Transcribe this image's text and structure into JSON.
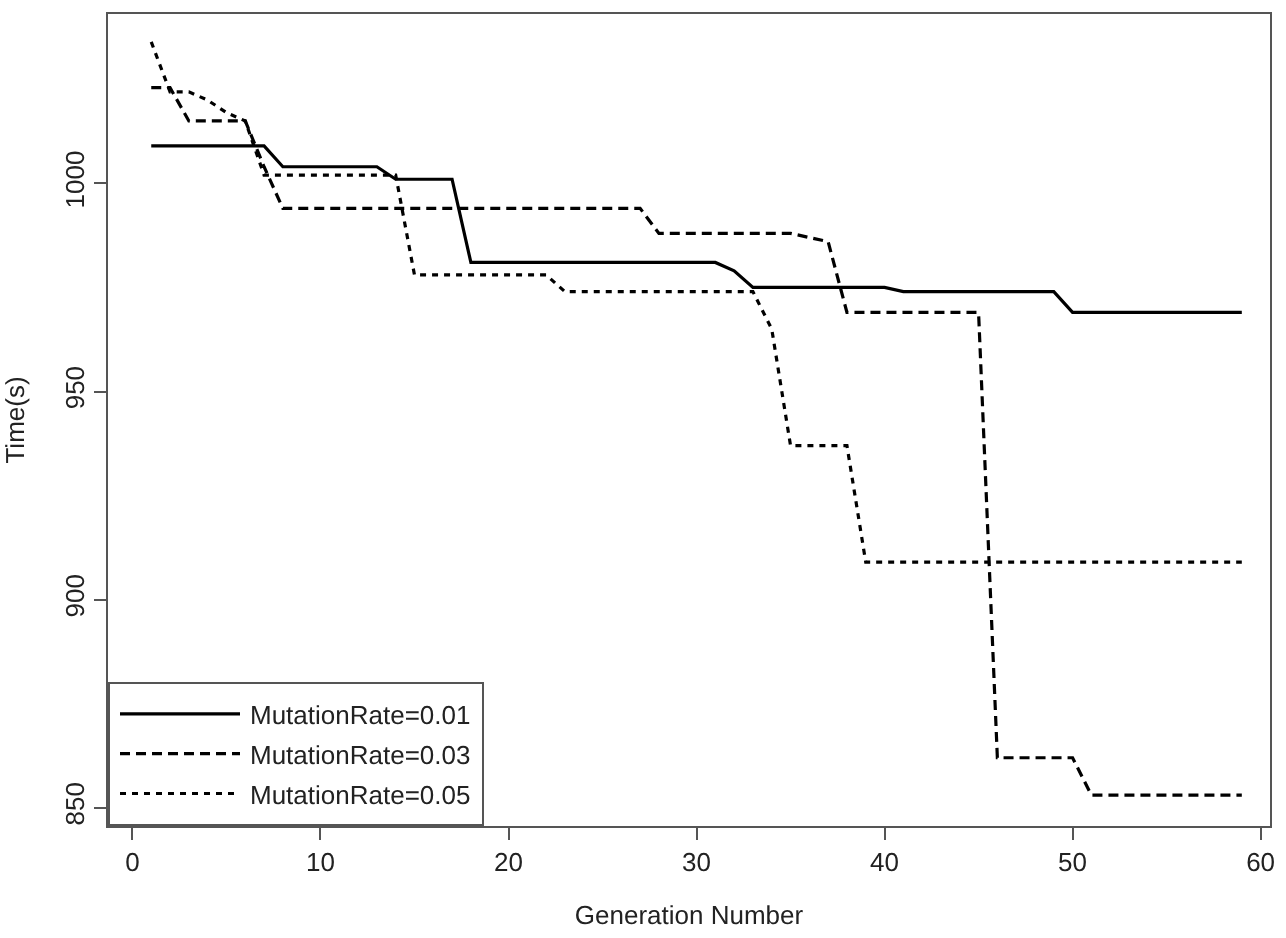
{
  "chart_data": {
    "type": "line",
    "xlabel": "Generation Number",
    "ylabel": "Time(s)",
    "x": [
      1,
      2,
      3,
      4,
      5,
      6,
      7,
      8,
      9,
      10,
      11,
      12,
      13,
      14,
      15,
      16,
      17,
      18,
      19,
      20,
      21,
      22,
      23,
      24,
      25,
      26,
      27,
      28,
      29,
      30,
      31,
      32,
      33,
      34,
      35,
      36,
      37,
      38,
      39,
      40,
      41,
      42,
      43,
      44,
      45,
      46,
      47,
      48,
      49,
      50,
      51,
      52,
      53,
      54,
      55,
      56,
      57,
      58,
      59
    ],
    "series": [
      {
        "name": "MutationRate=0.01",
        "color": "#000000",
        "line_style": "solid",
        "values": [
          1009,
          1009,
          1009,
          1009,
          1009,
          1009,
          1009,
          1004,
          1004,
          1004,
          1004,
          1004,
          1004,
          1001,
          1001,
          1001,
          1001,
          981,
          981,
          981,
          981,
          981,
          981,
          981,
          981,
          981,
          981,
          981,
          981,
          981,
          981,
          979,
          975,
          975,
          975,
          975,
          975,
          975,
          975,
          975,
          974,
          974,
          974,
          974,
          974,
          974,
          974,
          974,
          974,
          969,
          969,
          969,
          969,
          969,
          969,
          969,
          969,
          969,
          969
        ]
      },
      {
        "name": "MutationRate=0.03",
        "color": "#000000",
        "line_style": "dashed",
        "values": [
          1023,
          1023,
          1015,
          1015,
          1015,
          1015,
          1004,
          994,
          994,
          994,
          994,
          994,
          994,
          994,
          994,
          994,
          994,
          994,
          994,
          994,
          994,
          994,
          994,
          994,
          994,
          994,
          994,
          988,
          988,
          988,
          988,
          988,
          988,
          988,
          988,
          987,
          986,
          969,
          969,
          969,
          969,
          969,
          969,
          969,
          969,
          862,
          862,
          862,
          862,
          862,
          853,
          853,
          853,
          853,
          853,
          853,
          853,
          853,
          853
        ]
      },
      {
        "name": "MutationRate=0.05",
        "color": "#000000",
        "line_style": "dotted",
        "values": [
          1034,
          1022,
          1022,
          1020,
          1017,
          1015,
          1002,
          1002,
          1002,
          1002,
          1002,
          1002,
          1002,
          1002,
          978,
          978,
          978,
          978,
          978,
          978,
          978,
          978,
          974,
          974,
          974,
          974,
          974,
          974,
          974,
          974,
          974,
          974,
          974,
          965,
          937,
          937,
          937,
          937,
          909,
          909,
          909,
          909,
          909,
          909,
          909,
          909,
          909,
          909,
          909,
          909,
          909,
          909,
          909,
          909,
          909,
          909,
          909,
          909,
          909
        ]
      }
    ],
    "xlim": [
      -1.3,
      60.5
    ],
    "ylim": [
      845.6,
      1040.7
    ],
    "xticks": [
      0,
      10,
      20,
      30,
      40,
      50,
      60
    ],
    "yticks": [
      850,
      900,
      950,
      1000
    ],
    "legend": "bottom left"
  }
}
